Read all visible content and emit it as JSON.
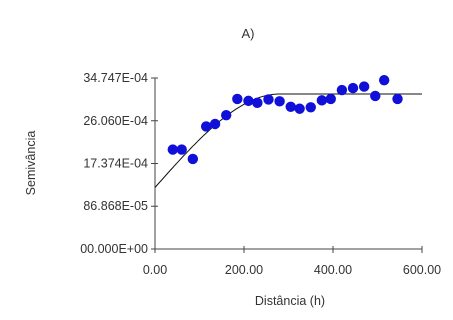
{
  "chart_data": {
    "type": "scatter",
    "title": "A)",
    "xlabel": "Distância (h)",
    "ylabel": "Semivância",
    "xlim": [
      0,
      600
    ],
    "ylim": [
      0,
      0.0034747
    ],
    "x_ticks": [
      {
        "value": 0,
        "label": "0.00"
      },
      {
        "value": 200,
        "label": "200.00"
      },
      {
        "value": 400,
        "label": "400.00"
      },
      {
        "value": 600,
        "label": "600.00"
      }
    ],
    "y_ticks": [
      {
        "value": 0,
        "label": "00.000E+00"
      },
      {
        "value": 0.00086868,
        "label": "86.868E-05"
      },
      {
        "value": 0.0017374,
        "label": "17.374E-04"
      },
      {
        "value": 0.002606,
        "label": "26.060E-04"
      },
      {
        "value": 0.0034747,
        "label": "34.747E-04"
      }
    ],
    "grid": false,
    "points": [
      {
        "x": 40,
        "y": 0.00202
      },
      {
        "x": 60,
        "y": 0.00202
      },
      {
        "x": 85,
        "y": 0.00183
      },
      {
        "x": 115,
        "y": 0.00249
      },
      {
        "x": 135,
        "y": 0.00254
      },
      {
        "x": 160,
        "y": 0.00272
      },
      {
        "x": 185,
        "y": 0.00305
      },
      {
        "x": 210,
        "y": 0.00301
      },
      {
        "x": 230,
        "y": 0.00297
      },
      {
        "x": 255,
        "y": 0.00304
      },
      {
        "x": 280,
        "y": 0.003
      },
      {
        "x": 305,
        "y": 0.00289
      },
      {
        "x": 325,
        "y": 0.00285
      },
      {
        "x": 350,
        "y": 0.00288
      },
      {
        "x": 375,
        "y": 0.00302
      },
      {
        "x": 395,
        "y": 0.00305
      },
      {
        "x": 420,
        "y": 0.00323
      },
      {
        "x": 445,
        "y": 0.00327
      },
      {
        "x": 470,
        "y": 0.0033
      },
      {
        "x": 495,
        "y": 0.00311
      },
      {
        "x": 515,
        "y": 0.00343
      },
      {
        "x": 545,
        "y": 0.00305
      }
    ],
    "fit_line": {
      "model": "spherical",
      "nugget": 0.00125,
      "sill": 0.00315,
      "range": 280
    },
    "colors": {
      "points": "#1010d8",
      "fit_line": "#111111",
      "axes": "#444444",
      "text": "#333333"
    }
  }
}
